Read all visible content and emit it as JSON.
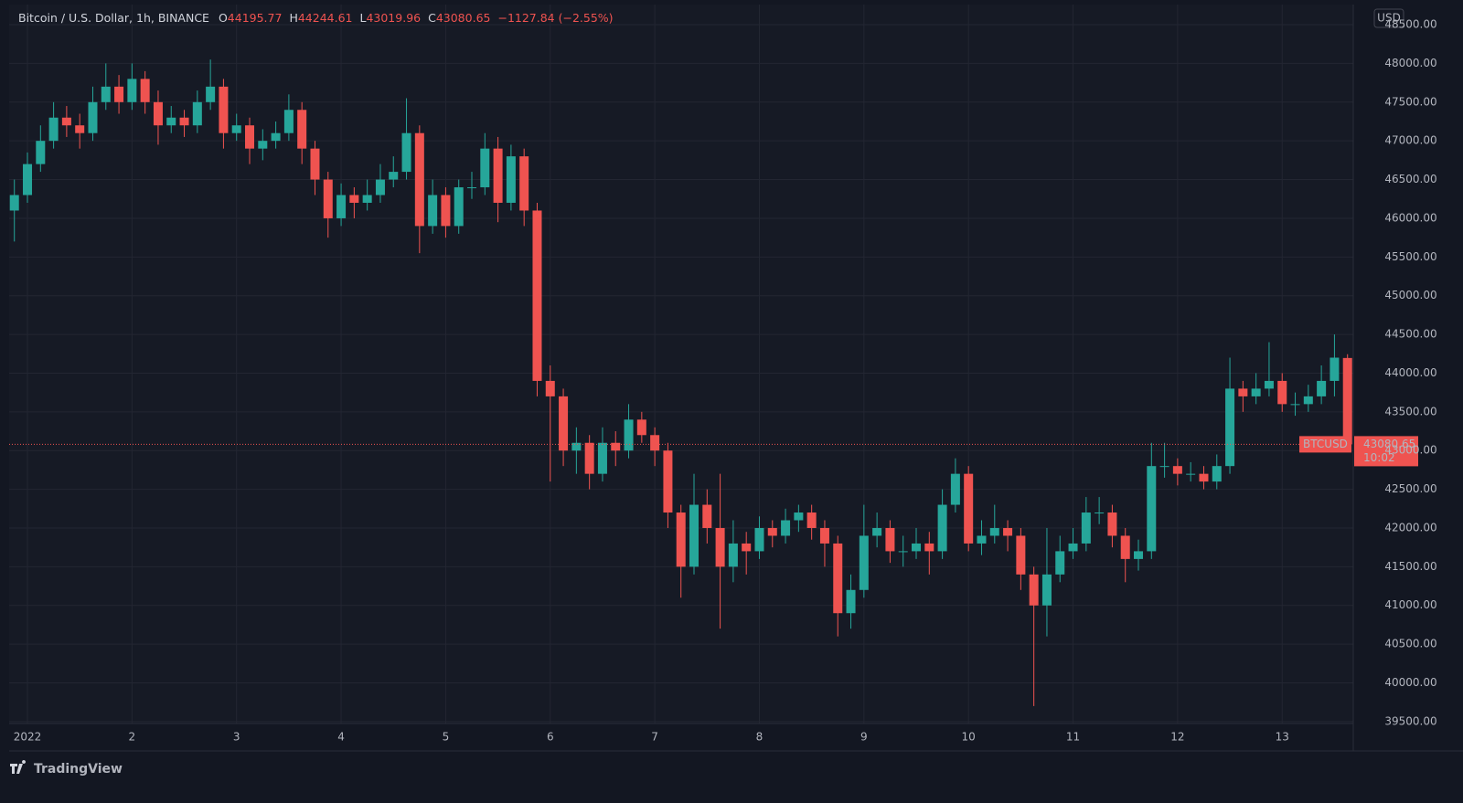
{
  "chart_data": {
    "type": "candlestick",
    "title": "Bitcoin / U.S. Dollar, 1h, BINANCE",
    "legend_labels": [
      "O",
      "H",
      "L",
      "C"
    ],
    "change": "−1127.84 (−2.55%)",
    "currency": "USD",
    "last_price": 43080.65,
    "last_price_label": "BTCUSD",
    "countdown": "10:02",
    "watermark": "TradingView",
    "up_color": "#26a69a",
    "down_color": "#ef5350",
    "grid": true,
    "xlim": [
      0.825,
      13.68
    ],
    "xticks": [
      {
        "value": 1,
        "label": "2022"
      },
      2,
      3,
      4,
      5,
      6,
      7,
      8,
      9,
      10,
      11,
      12,
      13
    ],
    "ylim": [
      39475,
      48760
    ],
    "yticks": [
      {
        "value": 39500,
        "label": "39500.00"
      },
      {
        "value": 40000,
        "label": "40000.00"
      },
      {
        "value": 40500,
        "label": "40500.00"
      },
      {
        "value": 41000,
        "label": "41000.00"
      },
      {
        "value": 41500,
        "label": "41500.00"
      },
      {
        "value": 42000,
        "label": "42000.00"
      },
      {
        "value": 42500,
        "label": "42500.00"
      },
      {
        "value": 43000,
        "label": "43000.00"
      },
      {
        "value": 43500,
        "label": "43500.00"
      },
      {
        "value": 44000,
        "label": "44000.00"
      },
      {
        "value": 44500,
        "label": "44500.00"
      },
      {
        "value": 45000,
        "label": "45000.00"
      },
      {
        "value": 45500,
        "label": "45500.00"
      },
      {
        "value": 46000,
        "label": "46000.00"
      },
      {
        "value": 46500,
        "label": "46500.00"
      },
      {
        "value": 47000,
        "label": "47000.00"
      },
      {
        "value": 47500,
        "label": "47500.00"
      },
      {
        "value": 48000,
        "label": "48000.00"
      },
      {
        "value": 48500,
        "label": "48500.00"
      }
    ],
    "x": [
      0.875,
      1,
      1.125,
      1.25,
      1.375,
      1.5,
      1.625,
      1.75,
      1.875,
      2,
      2.125,
      2.25,
      2.375,
      2.5,
      2.625,
      2.75,
      2.875,
      3,
      3.125,
      3.25,
      3.375,
      3.5,
      3.625,
      3.75,
      3.875,
      4,
      4.125,
      4.25,
      4.375,
      4.5,
      4.625,
      4.75,
      4.875,
      5,
      5.125,
      5.25,
      5.375,
      5.5,
      5.625,
      5.75,
      5.875,
      6,
      6.125,
      6.25,
      6.375,
      6.5,
      6.625,
      6.75,
      6.875,
      7,
      7.125,
      7.25,
      7.375,
      7.5,
      7.625,
      7.75,
      7.875,
      8,
      8.125,
      8.25,
      8.375,
      8.5,
      8.625,
      8.75,
      8.875,
      9,
      9.125,
      9.25,
      9.375,
      9.5,
      9.625,
      9.75,
      9.875,
      10,
      10.125,
      10.25,
      10.375,
      10.5,
      10.625,
      10.75,
      10.875,
      11,
      11.125,
      11.25,
      11.375,
      11.5,
      11.625,
      11.75,
      11.875,
      12,
      12.125,
      12.25,
      12.375,
      12.5,
      12.625,
      12.75,
      12.875,
      13,
      13.125,
      13.25,
      13.375,
      13.5,
      13.625
    ],
    "open": [
      46100,
      46300,
      46700,
      47000,
      47300,
      47200,
      47100,
      47500,
      47700,
      47500,
      47800,
      47500,
      47200,
      47300,
      47200,
      47500,
      47700,
      47100,
      47200,
      46900,
      47000,
      47100,
      47400,
      46900,
      46500,
      46000,
      46300,
      46200,
      46300,
      46500,
      46600,
      47100,
      45900,
      46300,
      45900,
      46400,
      46400,
      46900,
      46200,
      46800,
      46100,
      43900,
      43700,
      43000,
      43100,
      42700,
      43100,
      43000,
      43400,
      43200,
      43000,
      42200,
      41500,
      42300,
      42000,
      41500,
      41800,
      41700,
      42000,
      41900,
      42100,
      42200,
      42000,
      41800,
      40900,
      41200,
      41900,
      42000,
      41700,
      41700,
      41800,
      41700,
      42300,
      42700,
      41800,
      41900,
      42000,
      41900,
      41400,
      41000,
      41400,
      41700,
      41800,
      42200,
      42200,
      41900,
      41600,
      41700,
      42800,
      42800,
      42700,
      42700,
      42600,
      42800,
      43800,
      43700,
      43800,
      43900,
      43600,
      43600,
      43700,
      43900,
      44195.77
    ],
    "high": [
      46500,
      46850,
      47200,
      47500,
      47450,
      47350,
      47700,
      48000,
      47850,
      48000,
      47900,
      47650,
      47450,
      47400,
      47650,
      48050,
      47800,
      47350,
      47300,
      47150,
      47250,
      47600,
      47500,
      47000,
      46600,
      46450,
      46400,
      46500,
      46700,
      46800,
      47550,
      47200,
      46500,
      46400,
      46500,
      46600,
      47100,
      47050,
      46950,
      46900,
      46200,
      44100,
      43800,
      43300,
      43200,
      43300,
      43250,
      43600,
      43500,
      43300,
      43100,
      42300,
      42700,
      42500,
      42700,
      42100,
      41950,
      42150,
      42100,
      42250,
      42300,
      42300,
      42100,
      41900,
      41400,
      42300,
      42200,
      42100,
      41900,
      42000,
      41950,
      42500,
      42900,
      42800,
      42100,
      42300,
      42100,
      42000,
      41500,
      42000,
      41900,
      42000,
      42400,
      42400,
      42300,
      42000,
      41850,
      43100,
      43100,
      42900,
      42850,
      42800,
      42950,
      44200,
      43900,
      44000,
      44400,
      44000,
      43750,
      43850,
      44100,
      44500,
      44244.61
    ],
    "low": [
      45700,
      46200,
      46600,
      46900,
      47050,
      46900,
      47000,
      47400,
      47350,
      47400,
      47350,
      46950,
      47100,
      47050,
      47100,
      47400,
      46900,
      47000,
      46700,
      46750,
      46900,
      47000,
      46700,
      46300,
      45750,
      45900,
      46000,
      46100,
      46200,
      46400,
      46500,
      45550,
      45800,
      45750,
      45800,
      46250,
      46300,
      45950,
      46100,
      45900,
      43700,
      42600,
      42800,
      42700,
      42500,
      42600,
      42800,
      42900,
      43100,
      42800,
      42000,
      41100,
      41400,
      41800,
      40700,
      41300,
      41400,
      41600,
      41750,
      41800,
      41950,
      41850,
      41500,
      40600,
      40700,
      41100,
      41750,
      41550,
      41500,
      41600,
      41400,
      41600,
      42200,
      41700,
      41650,
      41800,
      41700,
      41200,
      39700,
      40600,
      41300,
      41600,
      41700,
      42050,
      41750,
      41300,
      41450,
      41600,
      42650,
      42550,
      42600,
      42500,
      42500,
      42700,
      43500,
      43600,
      43700,
      43500,
      43450,
      43500,
      43600,
      43700,
      43019.96
    ],
    "close": [
      46300,
      46700,
      47000,
      47300,
      47200,
      47100,
      47500,
      47700,
      47500,
      47800,
      47500,
      47200,
      47300,
      47200,
      47500,
      47700,
      47100,
      47200,
      46900,
      47000,
      47100,
      47400,
      46900,
      46500,
      46000,
      46300,
      46200,
      46300,
      46500,
      46600,
      47100,
      45900,
      46300,
      45900,
      46400,
      46400,
      46900,
      46200,
      46800,
      46100,
      43900,
      43700,
      43000,
      43100,
      42700,
      43100,
      43000,
      43400,
      43200,
      43000,
      42200,
      41500,
      42300,
      42000,
      41500,
      41800,
      41700,
      42000,
      41900,
      42100,
      42200,
      42000,
      41800,
      40900,
      41200,
      41900,
      42000,
      41700,
      41700,
      41800,
      41700,
      42300,
      42700,
      41800,
      41900,
      42000,
      41900,
      41400,
      41000,
      41400,
      41700,
      41800,
      42200,
      42200,
      41900,
      41600,
      41700,
      42800,
      42800,
      42700,
      42700,
      42600,
      42800,
      43800,
      43700,
      43800,
      43900,
      43600,
      43600,
      43700,
      43900,
      44200,
      43080.65
    ]
  }
}
